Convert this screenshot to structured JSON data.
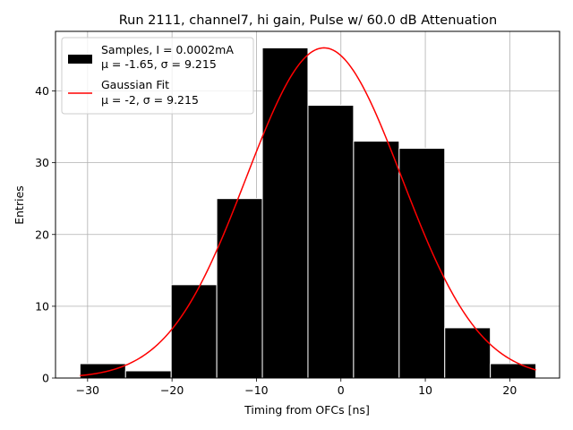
{
  "chart_data": {
    "type": "bar",
    "title": "Run 2111, channel7, hi gain, Pulse w/ 60.0 dB Attenuation",
    "xlabel": "Timing from OFCs [ns]",
    "ylabel": "Entries",
    "xlim": [
      -33.8,
      25.9
    ],
    "ylim": [
      0,
      48.3
    ],
    "xticks": [
      -30,
      -20,
      -10,
      0,
      10,
      20
    ],
    "yticks": [
      0,
      10,
      20,
      30,
      40
    ],
    "grid": true,
    "legend_position": "top-left",
    "histogram": {
      "name": "Samples, I = 0.0002mA",
      "stats": "μ = -1.65, σ = 9.215",
      "color": "#000000",
      "edge_color": "#ffffff",
      "bin_edges": [
        -30.9,
        -25.5,
        -20.1,
        -14.7,
        -9.3,
        -3.9,
        1.5,
        6.9,
        12.3,
        17.7,
        23.1
      ],
      "counts": [
        2,
        1,
        13,
        25,
        46,
        38,
        33,
        32,
        7,
        2
      ]
    },
    "fit": {
      "name": "Gaussian Fit",
      "stats": "μ = -2, σ = 9.215",
      "color": "#ff0000",
      "mu": -2,
      "sigma": 9.215,
      "amplitude": 46,
      "x_range": [
        -30.9,
        23.1
      ]
    }
  }
}
